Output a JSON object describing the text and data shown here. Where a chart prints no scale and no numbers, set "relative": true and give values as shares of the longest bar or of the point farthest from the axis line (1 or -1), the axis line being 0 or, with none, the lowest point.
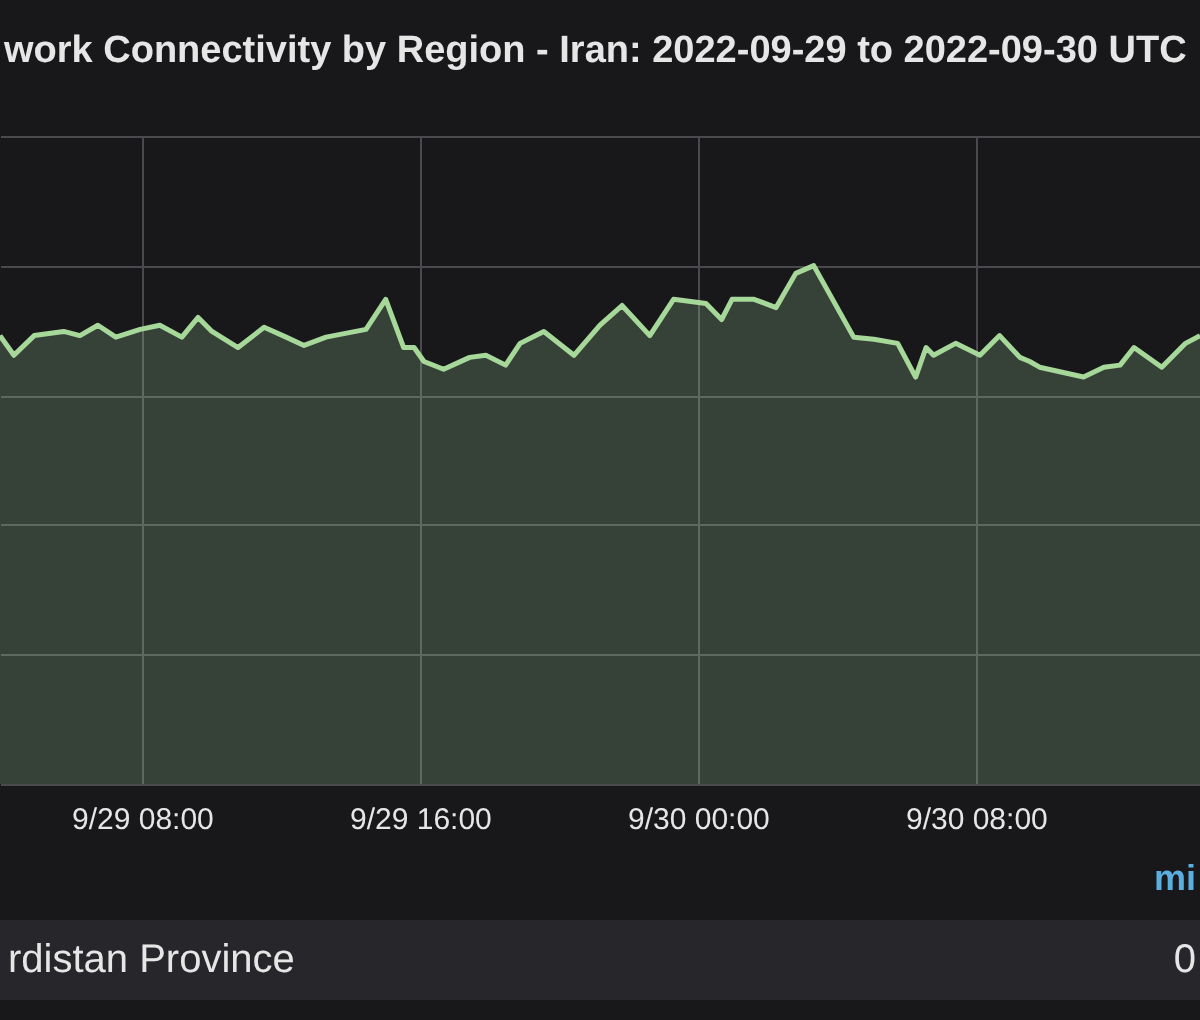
{
  "chart_data": {
    "type": "area",
    "title": "work Connectivity by Region - Iran: 2022-09-29 to 2022-09-30 UTC",
    "relative": true,
    "grid": true,
    "legend": "bottom",
    "x": [
      "2022-09-29T03:55",
      "2022-09-29T04:19",
      "2022-09-29T04:54",
      "2022-09-29T05:45",
      "2022-09-29T06:13",
      "2022-09-29T06:44",
      "2022-09-29T07:15",
      "2022-09-29T07:57",
      "2022-09-29T08:31",
      "2022-09-29T09:09",
      "2022-09-29T09:37",
      "2022-09-29T10:01",
      "2022-09-29T10:46",
      "2022-09-29T11:31",
      "2022-09-29T12:09",
      "2022-09-29T12:40",
      "2022-09-29T13:18",
      "2022-09-29T14:27",
      "2022-09-29T15:01",
      "2022-09-29T15:32",
      "2022-09-29T15:50",
      "2022-09-29T16:07",
      "2022-09-29T16:41",
      "2022-09-29T17:26",
      "2022-09-29T17:54",
      "2022-09-29T18:28",
      "2022-09-29T18:53",
      "2022-09-29T19:34",
      "2022-09-29T20:26",
      "2022-09-29T21:11",
      "2022-09-29T21:49",
      "2022-09-29T22:37",
      "2022-09-29T23:18",
      "2022-09-30T00:14",
      "2022-09-30T00:41",
      "2022-09-30T00:59",
      "2022-09-30T01:37",
      "2022-09-30T02:15",
      "2022-09-30T02:49",
      "2022-09-30T03:20",
      "2022-09-30T04:29",
      "2022-09-30T05:04",
      "2022-09-30T05:45",
      "2022-09-30T06:16",
      "2022-09-30T06:34",
      "2022-09-30T06:47",
      "2022-09-30T07:25",
      "2022-09-30T08:07",
      "2022-09-30T08:41",
      "2022-09-30T09:16",
      "2022-09-30T09:33",
      "2022-09-30T09:50",
      "2022-09-30T11:06",
      "2022-09-30T11:41",
      "2022-09-30T12:09",
      "2022-09-30T12:33",
      "2022-09-30T13:21",
      "2022-09-30T14:02",
      "2022-09-30T14:27"
    ],
    "series": [
      {
        "name": "rdistan Province",
        "color": "#a6d89a",
        "values": [
          0.865,
          0.827,
          0.865,
          0.873,
          0.865,
          0.885,
          0.862,
          0.877,
          0.885,
          0.862,
          0.9,
          0.873,
          0.842,
          0.881,
          0.862,
          0.846,
          0.862,
          0.877,
          0.935,
          0.842,
          0.842,
          0.815,
          0.8,
          0.823,
          0.827,
          0.808,
          0.85,
          0.873,
          0.827,
          0.885,
          0.923,
          0.865,
          0.935,
          0.927,
          0.896,
          0.935,
          0.935,
          0.919,
          0.985,
          1,
          0.862,
          0.858,
          0.85,
          0.785,
          0.842,
          0.827,
          0.85,
          0.827,
          0.865,
          0.823,
          0.815,
          0.804,
          0.785,
          0.804,
          0.808,
          0.842,
          0.804,
          0.85,
          0.865
        ]
      }
    ],
    "xlim": [
      "2022-09-29T03:55",
      "2022-09-30T14:27"
    ],
    "xticks": [
      {
        "value": "2022-09-29T08:00",
        "label": "9/29 08:00"
      },
      {
        "value": "2022-09-29T16:00",
        "label": "9/29 16:00"
      },
      {
        "value": "2022-09-30T00:00",
        "label": "9/30 00:00"
      },
      {
        "value": "2022-09-30T08:00",
        "label": "9/30 08:00"
      }
    ],
    "annotations": [
      "mi",
      "0"
    ]
  }
}
